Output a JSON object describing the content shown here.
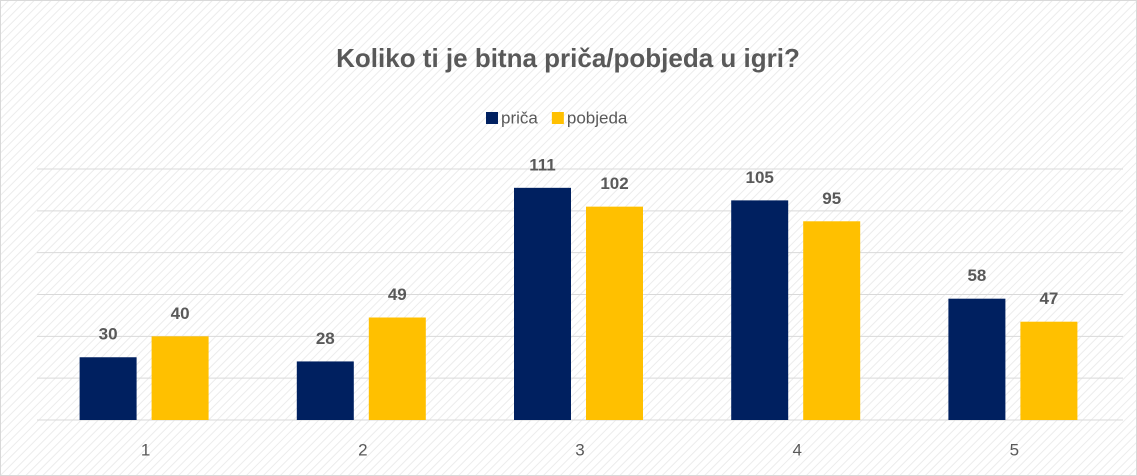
{
  "chart_data": {
    "type": "bar",
    "title": "Koliko ti je bitna priča/pobjeda u igri?",
    "categories": [
      "1",
      "2",
      "3",
      "4",
      "5"
    ],
    "series": [
      {
        "name": "priča",
        "color": "#002060",
        "values": [
          30,
          28,
          111,
          105,
          58
        ]
      },
      {
        "name": "pobjeda",
        "color": "#FFC000",
        "values": [
          40,
          49,
          102,
          95,
          47
        ]
      }
    ],
    "ylim": [
      0,
      120
    ],
    "yticks": [
      0,
      20,
      40,
      60,
      80,
      100,
      120
    ],
    "grid": true,
    "legend": "top"
  }
}
